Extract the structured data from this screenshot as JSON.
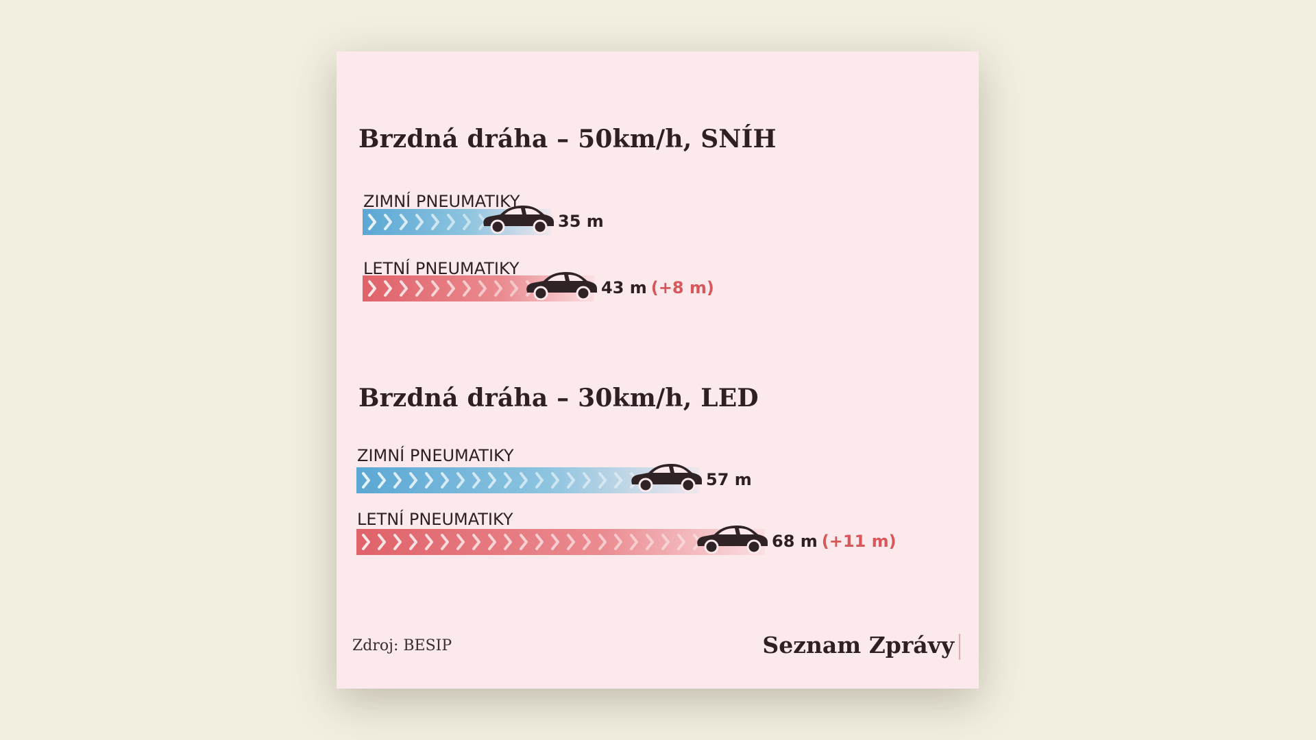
{
  "chart_data": [
    {
      "type": "bar",
      "title": "Brzdná dráha – 50km/h, SNÍH",
      "unit": "m",
      "categories": [
        "ZIMNÍ PNEUMATIKY",
        "LETNÍ PNEUMATIKY"
      ],
      "values": [
        35,
        43
      ],
      "value_labels": [
        "35 m",
        "43 m"
      ],
      "difference_labels": [
        "",
        "(+8 m)"
      ]
    },
    {
      "type": "bar",
      "title": "Brzdná dráha – 30km/h, LED",
      "unit": "m",
      "categories": [
        "ZIMNÍ PNEUMATIKY",
        "LETNÍ PNEUMATIKY"
      ],
      "values": [
        57,
        68
      ],
      "value_labels": [
        "57 m",
        "68 m"
      ],
      "difference_labels": [
        "",
        "(+11 m)"
      ]
    }
  ],
  "colors": {
    "winter": "#5ba8d4",
    "summer": "#e0626a",
    "difference": "#d9575a",
    "card": "#fce9ec",
    "page": "#f2efe1"
  },
  "icons": [
    "car-icon",
    "chevron-icon"
  ],
  "footer": {
    "source": "Zdroj: BESIP",
    "brand": "Seznam Zprávy"
  }
}
